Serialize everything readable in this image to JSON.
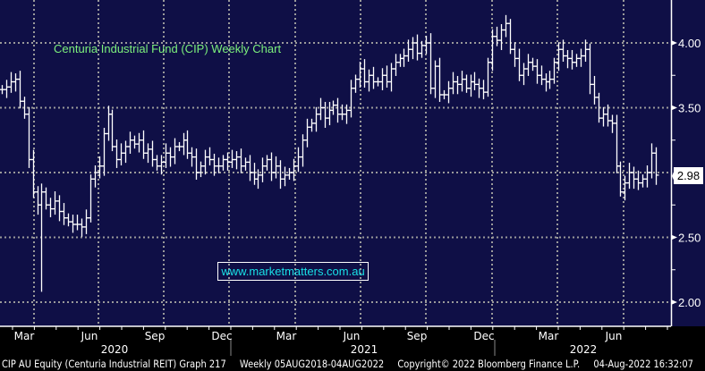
{
  "chart_data": {
    "type": "ohlc-bar",
    "title": "Centuria Industrial Fund (CIP) Weekly Chart",
    "watermark_link": "www.marketmatters.com.au",
    "ylim": [
      1.82,
      4.28
    ],
    "yticks": [
      2.0,
      2.5,
      3.0,
      3.5,
      4.0
    ],
    "ytick_labels": [
      "2.00",
      "2.50",
      "3.50",
      "4.00"
    ],
    "last_price": "2.98",
    "x_month_labels": [
      "Mar",
      "Jun",
      "Sep",
      "Dec",
      "Mar",
      "Jun",
      "Sep",
      "Dec",
      "Mar",
      "Jun"
    ],
    "x_year_labels": [
      "2020",
      "2021",
      "2022"
    ],
    "grid": true,
    "colors": {
      "background": "#0f0f46",
      "bars": "#ffffff",
      "grid": "#9a9a9a",
      "title": "#7cf07c",
      "link": "#19e0e6"
    },
    "crash_low": 2.08,
    "close": [
      3.64,
      3.66,
      3.7,
      3.72,
      3.55,
      3.45,
      3.1,
      2.85,
      2.75,
      2.85,
      2.75,
      2.72,
      2.78,
      2.7,
      2.65,
      2.62,
      2.6,
      2.6,
      2.58,
      2.65,
      2.95,
      3.0,
      3.05,
      3.3,
      3.45,
      3.2,
      3.1,
      3.15,
      3.2,
      3.25,
      3.22,
      3.25,
      3.15,
      3.18,
      3.1,
      3.05,
      3.08,
      3.15,
      3.12,
      3.2,
      3.2,
      3.25,
      3.15,
      3.12,
      3.0,
      3.05,
      3.12,
      3.1,
      3.05,
      3.05,
      3.1,
      3.08,
      3.1,
      3.12,
      3.05,
      3.08,
      3.0,
      2.95,
      2.98,
      3.05,
      3.1,
      3.0,
      3.05,
      2.95,
      2.98,
      3.0,
      3.05,
      3.12,
      3.25,
      3.35,
      3.38,
      3.45,
      3.5,
      3.42,
      3.48,
      3.52,
      3.45,
      3.45,
      3.48,
      3.65,
      3.72,
      3.8,
      3.7,
      3.75,
      3.7,
      3.7,
      3.75,
      3.7,
      3.8,
      3.85,
      3.88,
      3.9,
      3.95,
      4.0,
      3.92,
      3.98,
      4.0,
      3.65,
      3.82,
      3.6,
      3.6,
      3.65,
      3.7,
      3.68,
      3.72,
      3.65,
      3.7,
      3.68,
      3.65,
      3.62,
      3.85,
      4.05,
      4.02,
      4.1,
      4.15,
      3.95,
      3.88,
      3.75,
      3.8,
      3.85,
      3.82,
      3.75,
      3.72,
      3.7,
      3.72,
      3.85,
      3.95,
      3.9,
      3.88,
      3.85,
      3.88,
      3.9,
      3.95,
      3.68,
      3.58,
      3.42,
      3.45,
      3.4,
      3.38,
      3.05,
      2.85,
      2.92,
      3.0,
      2.95,
      2.92,
      2.95,
      3.0,
      3.15,
      2.98
    ]
  },
  "footer": {
    "security": "CIP AU Equity (Centuria Industrial REIT) Graph 217",
    "range": "Weekly 05AUG2018-04AUG2022",
    "copyright": "Copyright© 2022 Bloomberg Finance L.P.",
    "timestamp": "04-Aug-2022 16:32:07"
  }
}
